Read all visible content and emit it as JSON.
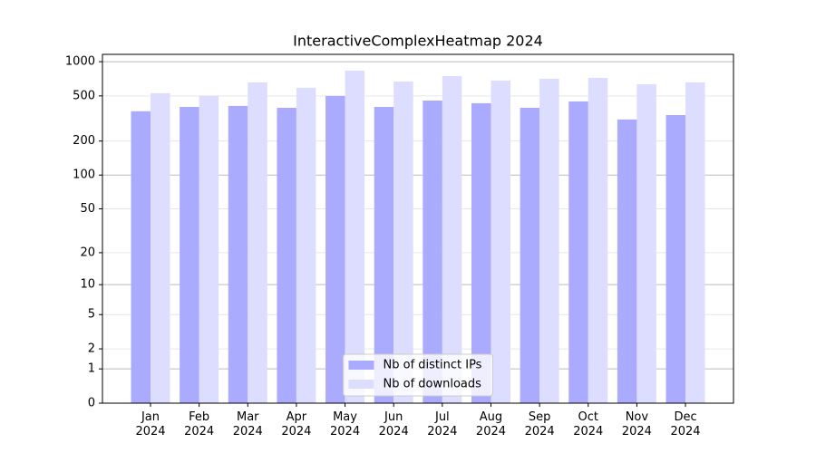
{
  "chart_data": {
    "type": "bar",
    "title": "InteractiveComplexHeatmap 2024",
    "categories": [
      "Jan\n2024",
      "Feb\n2024",
      "Mar\n2024",
      "Apr\n2024",
      "May\n2024",
      "Jun\n2024",
      "Jul\n2024",
      "Aug\n2024",
      "Sep\n2024",
      "Oct\n2024",
      "Nov\n2024",
      "Dec\n2024"
    ],
    "series": [
      {
        "name": "Nb of distinct IPs",
        "color": "#aaaaff",
        "values": [
          366,
          400,
          408,
          393,
          499,
          400,
          455,
          431,
          393,
          447,
          310,
          339
        ]
      },
      {
        "name": "Nb of downloads",
        "color": "#ddddff",
        "values": [
          528,
          499,
          657,
          589,
          835,
          670,
          748,
          682,
          708,
          721,
          634,
          657
        ]
      }
    ],
    "yscale": "log1p",
    "ylim": [
      0,
      1160
    ],
    "yticks": [
      0,
      1,
      2,
      5,
      10,
      20,
      50,
      100,
      200,
      500,
      1000
    ],
    "grid": true,
    "legend": "lower center"
  }
}
